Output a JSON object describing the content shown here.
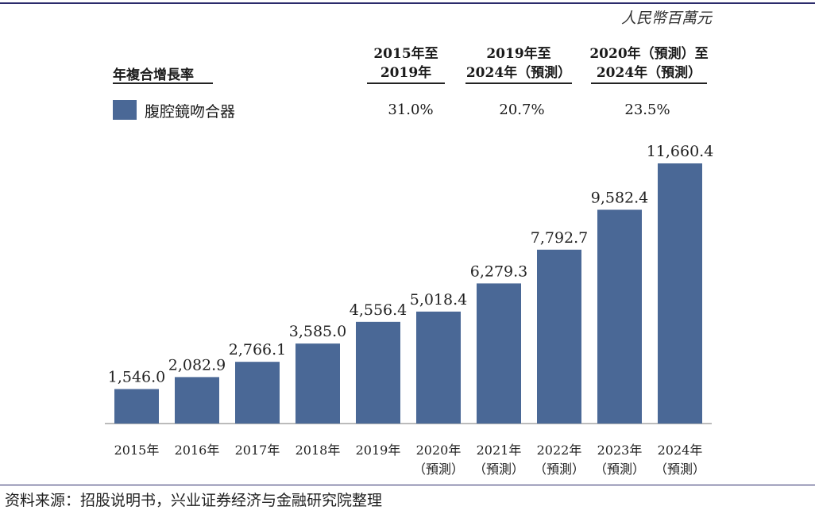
{
  "unit": "人民幣百萬元",
  "header": {
    "cagr_title": "年複合增長率",
    "col1": {
      "line1": "2015年至",
      "line2": "2019年"
    },
    "col2": {
      "line1": "2019年至",
      "line2": "2024年（預測）"
    },
    "col3": {
      "line1": "2020年（預測）至",
      "line2": "2024年（預測）"
    }
  },
  "legend": {
    "label": "腹腔鏡吻合器",
    "color": "#4a6896"
  },
  "cagr_values": [
    "31.0%",
    "20.7%",
    "23.5%"
  ],
  "source": "资料来源：招股说明书，兴业证券经济与金融研究院整理",
  "chart_data": {
    "type": "bar",
    "categories": [
      [
        "2015年"
      ],
      [
        "2016年"
      ],
      [
        "2017年"
      ],
      [
        "2018年"
      ],
      [
        "2019年"
      ],
      [
        "2020年",
        "（預測）"
      ],
      [
        "2021年",
        "（預測）"
      ],
      [
        "2022年",
        "（預測）"
      ],
      [
        "2023年",
        "（預測）"
      ],
      [
        "2024年",
        "（預測）"
      ]
    ],
    "values": [
      1546.0,
      2082.9,
      2766.1,
      3585.0,
      4556.4,
      5018.4,
      6279.3,
      7792.7,
      9582.4,
      11660.4
    ],
    "value_labels": [
      "1,546.0",
      "2,082.9",
      "2,766.1",
      "3,585.0",
      "4,556.4",
      "5,018.4",
      "6,279.3",
      "7,792.7",
      "9,582.4",
      "11,660.4"
    ],
    "series": [
      {
        "name": "腹腔鏡吻合器",
        "values": [
          1546.0,
          2082.9,
          2766.1,
          3585.0,
          4556.4,
          5018.4,
          6279.3,
          7792.7,
          9582.4,
          11660.4
        ]
      }
    ],
    "bar_color": "#4a6896",
    "title": "",
    "xlabel": "",
    "ylabel": "",
    "ylim": [
      0,
      11660.4
    ],
    "grid": false,
    "legend_position": "top-left"
  }
}
